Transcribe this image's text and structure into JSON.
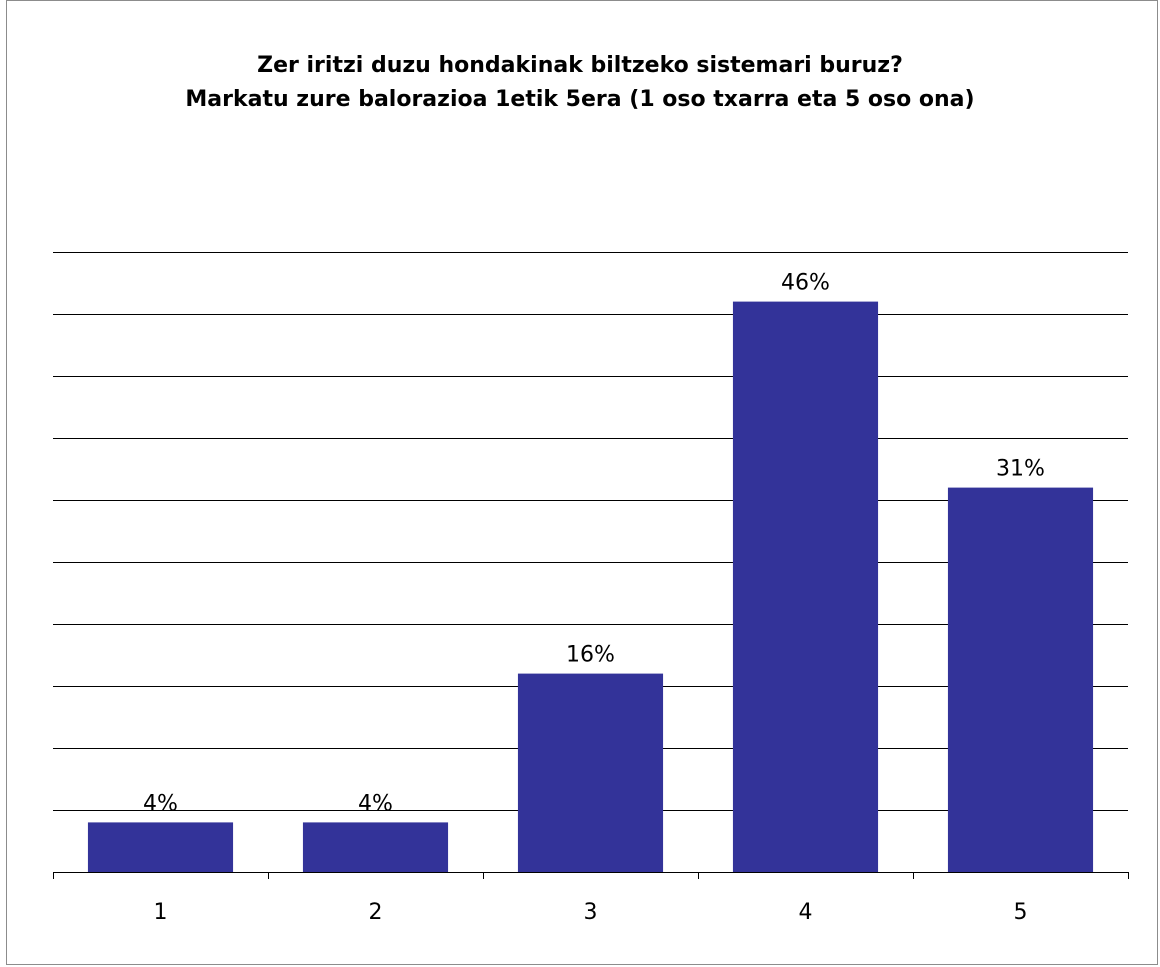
{
  "chart_data": {
    "type": "bar",
    "title": [
      "Zer iritzi duzu hondakinak biltzeko sistemari buruz?",
      "Markatu zure balorazioa 1etik 5era (1 oso txarra eta 5 oso ona)"
    ],
    "categories": [
      "1",
      "2",
      "3",
      "4",
      "5"
    ],
    "values": [
      4,
      4,
      16,
      46,
      31
    ],
    "data_labels": [
      "4%",
      "4%",
      "16%",
      "46%",
      "31%"
    ],
    "ylim": [
      0,
      50
    ],
    "y_gridlines": [
      5,
      10,
      15,
      20,
      25,
      30,
      35,
      40,
      45,
      50
    ],
    "y_tick_labels_shown": false,
    "grid": true,
    "legend": "none",
    "bar_color": "#333399",
    "grid_color": "#000000"
  }
}
